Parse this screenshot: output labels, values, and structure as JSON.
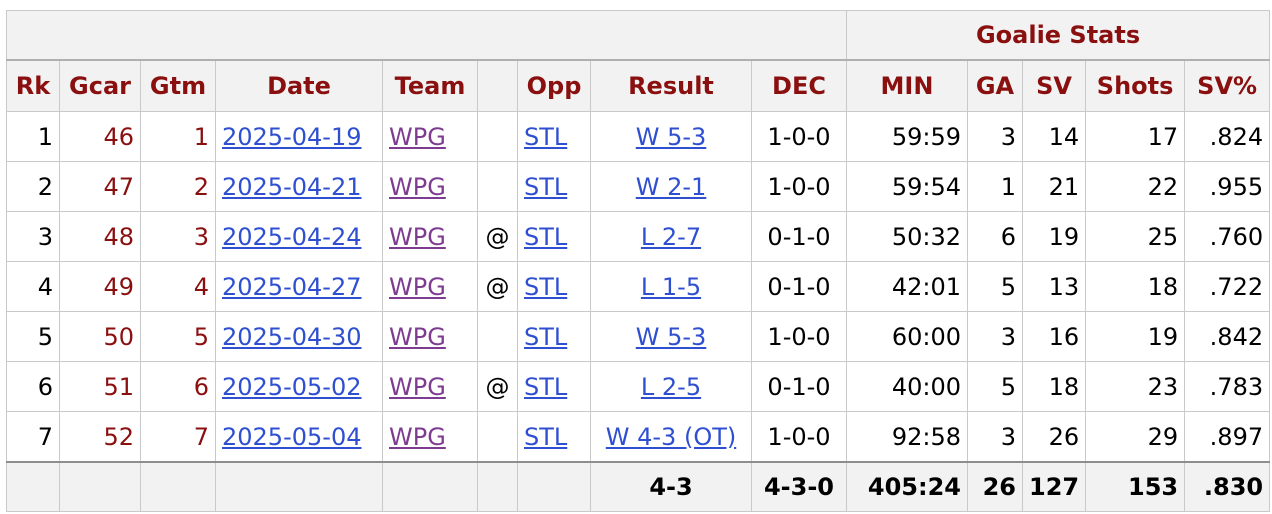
{
  "group_header": "Goalie Stats",
  "columns": [
    "Rk",
    "Gcar",
    "Gtm",
    "Date",
    "Team",
    "",
    "Opp",
    "Result",
    "DEC",
    "MIN",
    "GA",
    "SV",
    "Shots",
    "SV%"
  ],
  "rows": [
    {
      "rk": "1",
      "gcar": "46",
      "gtm": "1",
      "date": "2025-04-19",
      "team": "WPG",
      "loc": "",
      "opp": "STL",
      "result": "W 5-3",
      "dec": "1-0-0",
      "min": "59:59",
      "ga": "3",
      "sv": "14",
      "shots": "17",
      "svpct": ".824"
    },
    {
      "rk": "2",
      "gcar": "47",
      "gtm": "2",
      "date": "2025-04-21",
      "team": "WPG",
      "loc": "",
      "opp": "STL",
      "result": "W 2-1",
      "dec": "1-0-0",
      "min": "59:54",
      "ga": "1",
      "sv": "21",
      "shots": "22",
      "svpct": ".955"
    },
    {
      "rk": "3",
      "gcar": "48",
      "gtm": "3",
      "date": "2025-04-24",
      "team": "WPG",
      "loc": "@",
      "opp": "STL",
      "result": "L 2-7",
      "dec": "0-1-0",
      "min": "50:32",
      "ga": "6",
      "sv": "19",
      "shots": "25",
      "svpct": ".760"
    },
    {
      "rk": "4",
      "gcar": "49",
      "gtm": "4",
      "date": "2025-04-27",
      "team": "WPG",
      "loc": "@",
      "opp": "STL",
      "result": "L 1-5",
      "dec": "0-1-0",
      "min": "42:01",
      "ga": "5",
      "sv": "13",
      "shots": "18",
      "svpct": ".722"
    },
    {
      "rk": "5",
      "gcar": "50",
      "gtm": "5",
      "date": "2025-04-30",
      "team": "WPG",
      "loc": "",
      "opp": "STL",
      "result": "W 5-3",
      "dec": "1-0-0",
      "min": "60:00",
      "ga": "3",
      "sv": "16",
      "shots": "19",
      "svpct": ".842"
    },
    {
      "rk": "6",
      "gcar": "51",
      "gtm": "6",
      "date": "2025-05-02",
      "team": "WPG",
      "loc": "@",
      "opp": "STL",
      "result": "L 2-5",
      "dec": "0-1-0",
      "min": "40:00",
      "ga": "5",
      "sv": "18",
      "shots": "23",
      "svpct": ".783"
    },
    {
      "rk": "7",
      "gcar": "52",
      "gtm": "7",
      "date": "2025-05-04",
      "team": "WPG",
      "loc": "",
      "opp": "STL",
      "result": "W 4-3 (OT)",
      "dec": "1-0-0",
      "min": "92:58",
      "ga": "3",
      "sv": "26",
      "shots": "29",
      "svpct": ".897"
    }
  ],
  "totals": {
    "result": "4-3",
    "dec": "4-3-0",
    "min": "405:24",
    "ga": "26",
    "sv": "127",
    "shots": "153",
    "svpct": ".830"
  },
  "colors": {
    "header_text": "#8a1010",
    "link": "#2f4fd1",
    "visited_link": "#7e3c91",
    "header_bg": "#f2f2f2"
  }
}
